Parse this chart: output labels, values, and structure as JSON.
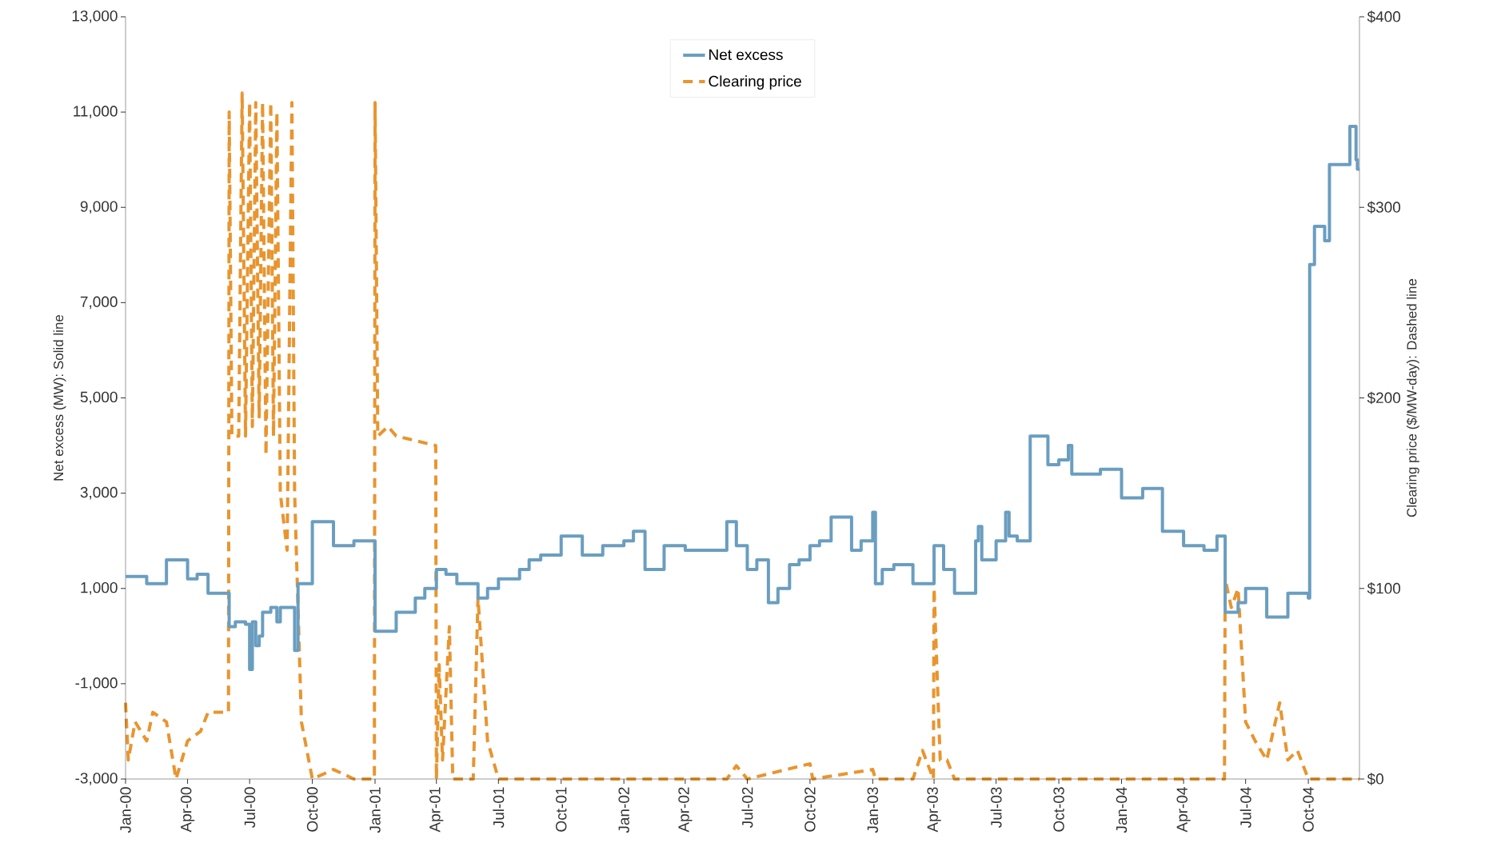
{
  "chart_data": {
    "type": "line",
    "ylabel": "Net excess (MW): Solid line",
    "y2label": "Clearing price ($/MW-day): Dashed line",
    "legend": "top",
    "xlim": [
      "2000-01-01",
      "2004-12-15"
    ],
    "xticks": [
      {
        "value": "2000-01-01",
        "label": "Jan-00"
      },
      {
        "value": "2000-04-01",
        "label": "Apr-00"
      },
      {
        "value": "2000-07-01",
        "label": "Jul-00"
      },
      {
        "value": "2000-10-01",
        "label": "Oct-00"
      },
      {
        "value": "2001-01-01",
        "label": "Jan-01"
      },
      {
        "value": "2001-04-01",
        "label": "Apr-01"
      },
      {
        "value": "2001-07-01",
        "label": "Jul-01"
      },
      {
        "value": "2001-10-01",
        "label": "Oct-01"
      },
      {
        "value": "2002-01-01",
        "label": "Jan-02"
      },
      {
        "value": "2002-04-01",
        "label": "Apr-02"
      },
      {
        "value": "2002-07-01",
        "label": "Jul-02"
      },
      {
        "value": "2002-10-01",
        "label": "Oct-02"
      },
      {
        "value": "2003-01-01",
        "label": "Jan-03"
      },
      {
        "value": "2003-04-01",
        "label": "Apr-03"
      },
      {
        "value": "2003-07-01",
        "label": "Jul-03"
      },
      {
        "value": "2003-10-01",
        "label": "Oct-03"
      },
      {
        "value": "2004-01-01",
        "label": "Jan-04"
      },
      {
        "value": "2004-04-01",
        "label": "Apr-04"
      },
      {
        "value": "2004-07-01",
        "label": "Jul-04"
      },
      {
        "value": "2004-10-01",
        "label": "Oct-04"
      }
    ],
    "ylim": [
      -3000,
      13000
    ],
    "yticks": [
      {
        "value": -3000,
        "label": "-3,000"
      },
      {
        "value": -1000,
        "label": "-1,000"
      },
      {
        "value": 1000,
        "label": "1,000"
      },
      {
        "value": 3000,
        "label": "3,000"
      },
      {
        "value": 5000,
        "label": "5,000"
      },
      {
        "value": 7000,
        "label": "7,000"
      },
      {
        "value": 9000,
        "label": "9,000"
      },
      {
        "value": 11000,
        "label": "11,000"
      },
      {
        "value": 13000,
        "label": "13,000"
      }
    ],
    "y2lim": [
      0,
      400
    ],
    "y2ticks": [
      {
        "value": 0,
        "label": "$0"
      },
      {
        "value": 100,
        "label": "$100"
      },
      {
        "value": 200,
        "label": "$200"
      },
      {
        "value": 300,
        "label": "$300"
      },
      {
        "value": 400,
        "label": "$400"
      }
    ],
    "series": [
      {
        "name": "Net excess",
        "type": "step",
        "line_style": "solid",
        "color": "#6a9ec0",
        "x": [
          "2000-01-01",
          "2000-02-01",
          "2000-03-01",
          "2000-04-01",
          "2000-04-15",
          "2000-05-01",
          "2000-06-01",
          "2000-06-10",
          "2000-06-25",
          "2000-07-01",
          "2000-07-05",
          "2000-07-10",
          "2000-07-15",
          "2000-07-20",
          "2000-08-01",
          "2000-08-10",
          "2000-08-15",
          "2000-09-05",
          "2000-09-10",
          "2000-10-01",
          "2000-11-01",
          "2000-12-01",
          "2001-01-01",
          "2001-02-01",
          "2001-03-01",
          "2001-03-15",
          "2001-04-01",
          "2001-04-15",
          "2001-05-01",
          "2001-06-01",
          "2001-06-15",
          "2001-07-01",
          "2001-08-01",
          "2001-08-15",
          "2001-09-01",
          "2001-10-01",
          "2001-11-01",
          "2001-12-01",
          "2002-01-01",
          "2002-01-15",
          "2002-02-01",
          "2002-03-01",
          "2002-04-01",
          "2002-06-01",
          "2002-06-15",
          "2002-07-01",
          "2002-07-15",
          "2002-08-01",
          "2002-08-15",
          "2002-09-01",
          "2002-09-15",
          "2002-10-01",
          "2002-10-15",
          "2002-11-01",
          "2002-12-01",
          "2002-12-15",
          "2003-01-01",
          "2003-01-05",
          "2003-01-15",
          "2003-02-01",
          "2003-03-01",
          "2003-04-01",
          "2003-04-15",
          "2003-05-01",
          "2003-06-01",
          "2003-06-05",
          "2003-06-10",
          "2003-07-01",
          "2003-07-15",
          "2003-07-20",
          "2003-08-01",
          "2003-08-20",
          "2003-09-15",
          "2003-10-01",
          "2003-10-15",
          "2003-10-20",
          "2003-12-01",
          "2004-01-01",
          "2004-02-01",
          "2004-03-01",
          "2004-04-01",
          "2004-05-01",
          "2004-05-20",
          "2004-06-01",
          "2004-06-20",
          "2004-07-01",
          "2004-08-01",
          "2004-09-01",
          "2004-10-01",
          "2004-10-03",
          "2004-10-10",
          "2004-10-25",
          "2004-11-01",
          "2004-12-01",
          "2004-12-10",
          "2004-12-12",
          "2004-12-15"
        ],
        "values": [
          1250,
          1100,
          1600,
          1200,
          1300,
          900,
          200,
          300,
          250,
          -700,
          300,
          -200,
          0,
          500,
          600,
          300,
          600,
          -300,
          1100,
          2400,
          1900,
          2000,
          100,
          500,
          800,
          1000,
          1400,
          1300,
          1100,
          800,
          1000,
          1200,
          1400,
          1600,
          1700,
          2100,
          1700,
          1900,
          2000,
          2200,
          1400,
          1900,
          1800,
          2400,
          1900,
          1400,
          1600,
          700,
          1000,
          1500,
          1600,
          1900,
          2000,
          2500,
          1800,
          2000,
          2600,
          1100,
          1400,
          1500,
          1100,
          1900,
          1400,
          900,
          2000,
          2300,
          1600,
          2000,
          2600,
          2100,
          2000,
          4200,
          3600,
          3700,
          4000,
          3400,
          3500,
          2900,
          3100,
          2200,
          1900,
          1800,
          2100,
          500,
          700,
          1000,
          400,
          900,
          800,
          7800,
          8600,
          8300,
          9900,
          10700,
          10000,
          9800,
          9800
        ]
      },
      {
        "name": "Clearing price",
        "line_style": "dashed",
        "axis": "y2",
        "color": "#e8952f",
        "x": [
          "2000-01-01",
          "2000-01-05",
          "2000-01-15",
          "2000-02-01",
          "2000-02-10",
          "2000-03-01",
          "2000-03-15",
          "2000-04-01",
          "2000-04-20",
          "2000-05-01",
          "2000-05-31",
          "2000-06-01",
          "2000-06-05",
          "2000-06-15",
          "2000-06-20",
          "2000-06-25",
          "2000-07-01",
          "2000-07-05",
          "2000-07-10",
          "2000-07-15",
          "2000-07-20",
          "2000-07-25",
          "2000-08-01",
          "2000-08-05",
          "2000-08-10",
          "2000-08-15",
          "2000-08-25",
          "2000-09-01",
          "2000-09-05",
          "2000-09-15",
          "2000-10-01",
          "2000-11-01",
          "2000-12-01",
          "2000-12-31",
          "2001-01-01",
          "2001-01-05",
          "2001-01-20",
          "2001-02-01",
          "2001-03-31",
          "2001-04-01",
          "2001-04-05",
          "2001-04-10",
          "2001-04-20",
          "2001-04-25",
          "2001-05-25",
          "2001-06-01",
          "2001-06-15",
          "2001-07-01",
          "2002-06-01",
          "2002-06-15",
          "2002-07-01",
          "2002-10-01",
          "2002-10-05",
          "2003-01-01",
          "2003-01-05",
          "2003-03-01",
          "2003-03-15",
          "2003-03-31",
          "2003-04-01",
          "2003-04-10",
          "2003-04-20",
          "2003-05-01",
          "2004-05-31",
          "2004-06-01",
          "2004-06-10",
          "2004-06-20",
          "2004-07-01",
          "2004-07-15",
          "2004-08-01",
          "2004-08-20",
          "2004-09-01",
          "2004-09-15",
          "2004-10-01",
          "2004-12-15"
        ],
        "values": [
          40,
          10,
          30,
          20,
          35,
          30,
          0,
          20,
          25,
          35,
          35,
          350,
          180,
          180,
          360,
          180,
          355,
          185,
          355,
          190,
          355,
          170,
          355,
          180,
          350,
          150,
          120,
          355,
          150,
          30,
          0,
          5,
          0,
          0,
          355,
          180,
          185,
          180,
          175,
          0,
          60,
          10,
          80,
          0,
          0,
          95,
          20,
          0,
          0,
          7,
          0,
          8,
          0,
          5,
          0,
          0,
          15,
          0,
          100,
          10,
          10,
          0,
          0,
          105,
          90,
          100,
          30,
          20,
          10,
          40,
          10,
          15,
          0,
          0
        ]
      }
    ]
  }
}
